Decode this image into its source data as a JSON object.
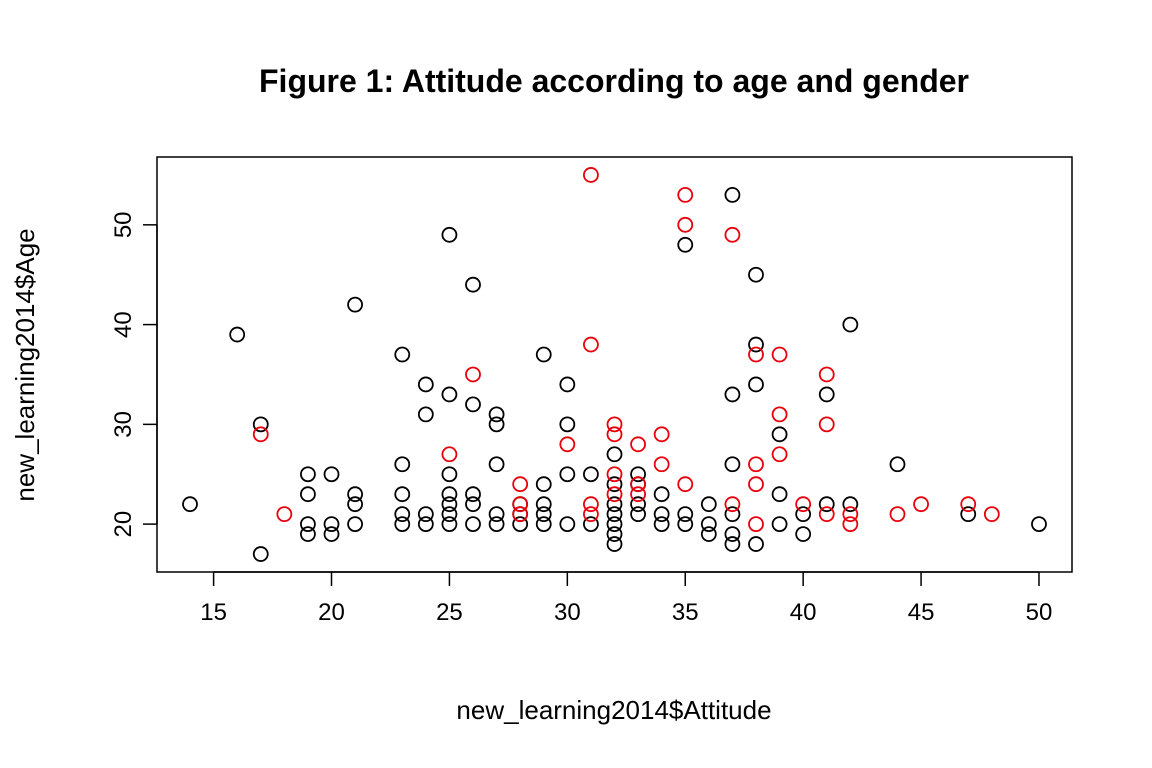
{
  "chart_data": {
    "type": "scatter",
    "title": "Figure 1: Attitude according to age and gender",
    "xlabel": "new_learning2014$Attitude",
    "ylabel": "new_learning2014$Age",
    "xlim": [
      12.6,
      51.4
    ],
    "ylim": [
      15.2,
      56.8
    ],
    "x_ticks": [
      "15",
      "20",
      "25",
      "30",
      "35",
      "40",
      "45",
      "50"
    ],
    "y_ticks": [
      "20",
      "30",
      "40",
      "50"
    ],
    "grid": false,
    "legend": "none",
    "colors": {
      "black_series": "#000000",
      "red_series": "#e8000b",
      "frame": "#000000"
    },
    "series": [
      {
        "color": "#000000",
        "points": [
          [
            14,
            22
          ],
          [
            16,
            39
          ],
          [
            17,
            30
          ],
          [
            17,
            17
          ],
          [
            19,
            25
          ],
          [
            19,
            23
          ],
          [
            19,
            20
          ],
          [
            19,
            19
          ],
          [
            20,
            25
          ],
          [
            20,
            20
          ],
          [
            20,
            19
          ],
          [
            21,
            42
          ],
          [
            21,
            23
          ],
          [
            21,
            22
          ],
          [
            21,
            20
          ],
          [
            23,
            37
          ],
          [
            23,
            26
          ],
          [
            23,
            23
          ],
          [
            23,
            21
          ],
          [
            23,
            20
          ],
          [
            24,
            34
          ],
          [
            24,
            31
          ],
          [
            24,
            21
          ],
          [
            24,
            20
          ],
          [
            25,
            49
          ],
          [
            25,
            33
          ],
          [
            25,
            25
          ],
          [
            25,
            23
          ],
          [
            25,
            22
          ],
          [
            25,
            21
          ],
          [
            25,
            20
          ],
          [
            26,
            44
          ],
          [
            26,
            32
          ],
          [
            26,
            23
          ],
          [
            26,
            22
          ],
          [
            26,
            20
          ],
          [
            27,
            31
          ],
          [
            27,
            30
          ],
          [
            27,
            26
          ],
          [
            27,
            21
          ],
          [
            27,
            20
          ],
          [
            28,
            22
          ],
          [
            28,
            21
          ],
          [
            28,
            20
          ],
          [
            29,
            37
          ],
          [
            29,
            24
          ],
          [
            29,
            22
          ],
          [
            29,
            21
          ],
          [
            29,
            20
          ],
          [
            30,
            34
          ],
          [
            30,
            30
          ],
          [
            30,
            25
          ],
          [
            30,
            20
          ],
          [
            31,
            25
          ],
          [
            31,
            20
          ],
          [
            32,
            27
          ],
          [
            32,
            24
          ],
          [
            32,
            22
          ],
          [
            32,
            21
          ],
          [
            32,
            20
          ],
          [
            32,
            19
          ],
          [
            32,
            18
          ],
          [
            33,
            25
          ],
          [
            33,
            24
          ],
          [
            33,
            22
          ],
          [
            33,
            21
          ],
          [
            34,
            23
          ],
          [
            34,
            21
          ],
          [
            34,
            20
          ],
          [
            35,
            48
          ],
          [
            35,
            21
          ],
          [
            35,
            20
          ],
          [
            36,
            22
          ],
          [
            36,
            20
          ],
          [
            36,
            19
          ],
          [
            37,
            53
          ],
          [
            37,
            33
          ],
          [
            37,
            26
          ],
          [
            37,
            21
          ],
          [
            37,
            19
          ],
          [
            37,
            18
          ],
          [
            38,
            45
          ],
          [
            38,
            38
          ],
          [
            38,
            34
          ],
          [
            38,
            18
          ],
          [
            39,
            29
          ],
          [
            39,
            23
          ],
          [
            39,
            20
          ],
          [
            40,
            21
          ],
          [
            40,
            19
          ],
          [
            41,
            33
          ],
          [
            41,
            22
          ],
          [
            42,
            40
          ],
          [
            42,
            22
          ],
          [
            44,
            26
          ],
          [
            47,
            21
          ],
          [
            50,
            20
          ]
        ]
      },
      {
        "color": "#e8000b",
        "points": [
          [
            17,
            29
          ],
          [
            18,
            21
          ],
          [
            25,
            27
          ],
          [
            26,
            35
          ],
          [
            28,
            24
          ],
          [
            28,
            22
          ],
          [
            28,
            21
          ],
          [
            30,
            28
          ],
          [
            31,
            55
          ],
          [
            31,
            38
          ],
          [
            31,
            22
          ],
          [
            31,
            21
          ],
          [
            32,
            30
          ],
          [
            32,
            29
          ],
          [
            32,
            25
          ],
          [
            32,
            23
          ],
          [
            33,
            28
          ],
          [
            33,
            24
          ],
          [
            33,
            23
          ],
          [
            34,
            29
          ],
          [
            34,
            26
          ],
          [
            35,
            53
          ],
          [
            35,
            50
          ],
          [
            35,
            24
          ],
          [
            37,
            49
          ],
          [
            37,
            22
          ],
          [
            38,
            37
          ],
          [
            38,
            26
          ],
          [
            38,
            24
          ],
          [
            38,
            20
          ],
          [
            39,
            37
          ],
          [
            39,
            31
          ],
          [
            39,
            27
          ],
          [
            40,
            22
          ],
          [
            41,
            35
          ],
          [
            41,
            30
          ],
          [
            41,
            21
          ],
          [
            42,
            21
          ],
          [
            42,
            20
          ],
          [
            44,
            21
          ],
          [
            45,
            22
          ],
          [
            47,
            22
          ],
          [
            48,
            21
          ]
        ]
      }
    ]
  }
}
